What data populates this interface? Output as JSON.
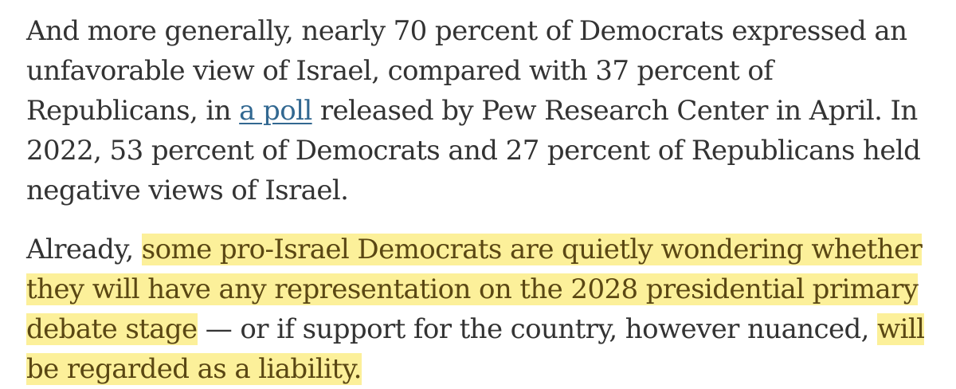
{
  "article": {
    "paragraph_1": {
      "text_before_link": "And more generally, nearly 70 percent of Democrats expressed an unfavorable view of Israel, compared with 37 percent of Republicans, in ",
      "link_text": "a poll",
      "text_after_link": " released by Pew Research Center in April. In 2022, 53 percent of Democrats and 27 percent of Republicans held negative views of Israel."
    },
    "paragraph_2": {
      "lead": "Already, ",
      "highlight_1": "some pro-Israel Democrats are quietly wondering whether they will have any representation on the 2028 presidential primary debate stage",
      "middle": " — or if support for the country, however nuanced, ",
      "highlight_2": "will be regarded as a liability."
    }
  },
  "colors": {
    "text": "#333333",
    "link": "#326891",
    "highlight_background": "#fcf09a",
    "highlight_text": "#5a4713"
  }
}
